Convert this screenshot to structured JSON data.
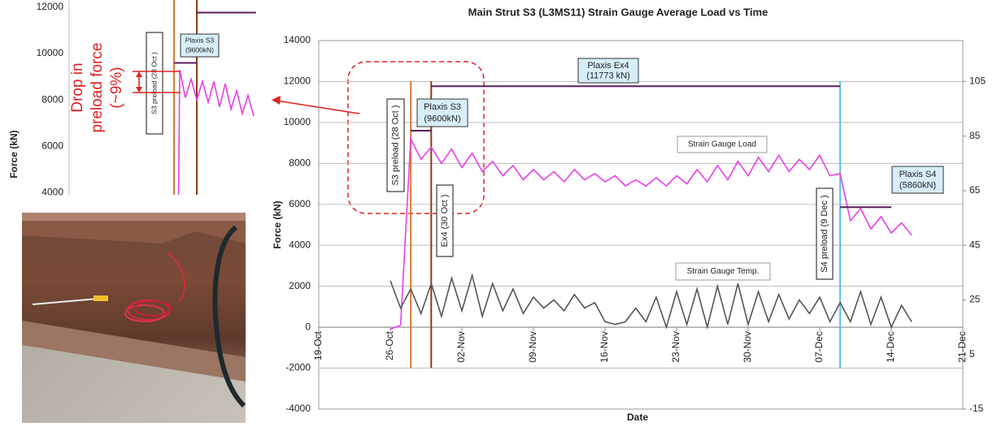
{
  "chart_data": [
    {
      "type": "line",
      "title": "Main Strut S3 (L3MS11) Strain Gauge Average Load vs Time",
      "x_label": "Date",
      "y_label": "Force (kN)",
      "x": [
        7,
        8,
        9,
        10,
        11,
        12,
        13,
        14,
        15,
        16,
        17,
        18,
        19,
        20,
        21,
        22,
        23,
        24,
        25,
        26,
        27,
        28,
        29,
        30,
        31,
        32,
        33,
        34,
        35,
        36,
        37,
        38,
        39,
        40,
        41,
        42,
        43,
        44,
        45,
        46,
        47,
        48,
        49,
        50,
        51,
        52,
        53,
        54,
        55,
        56,
        57,
        58
      ],
      "xlim": [
        0,
        63
      ],
      "xticks": [
        {
          "value": 0,
          "label": "19-Oct"
        },
        {
          "value": 7,
          "label": "26-Oct"
        },
        {
          "value": 14,
          "label": "02-Nov"
        },
        {
          "value": 21,
          "label": "09-Nov"
        },
        {
          "value": 28,
          "label": "16-Nov"
        },
        {
          "value": 35,
          "label": "23-Nov"
        },
        {
          "value": 42,
          "label": "30-Nov"
        },
        {
          "value": 49,
          "label": "07-Dec"
        },
        {
          "value": 56,
          "label": "14-Dec"
        },
        {
          "value": 63,
          "label": "21-Dec"
        }
      ],
      "ylim": [
        -4000,
        14000
      ],
      "yticks": [
        -4000,
        -2000,
        0,
        2000,
        4000,
        6000,
        8000,
        10000,
        12000,
        14000
      ],
      "y2lim": [
        -15,
        120
      ],
      "y2ticks": [
        -15,
        5,
        25,
        45,
        65,
        85,
        105
      ],
      "grid": true,
      "series": [
        {
          "name": "Strain Gauge Load",
          "color": "#e83ee8",
          "values": [
            -100,
            100,
            9200,
            8200,
            8800,
            8000,
            8700,
            7800,
            8500,
            7600,
            8100,
            7400,
            7900,
            7200,
            7700,
            7200,
            7600,
            7100,
            7700,
            7200,
            7500,
            7100,
            7400,
            6900,
            7200,
            6900,
            7300,
            6900,
            7400,
            7000,
            7700,
            7100,
            7900,
            7200,
            8100,
            7400,
            8300,
            7600,
            8400,
            7600,
            8200,
            7700,
            8400,
            7400,
            7500,
            5200,
            5800,
            4800,
            5400,
            4600,
            5100,
            4500
          ]
        },
        {
          "name": "Strain Gauge Temp.",
          "color": "#555555",
          "axis": "y2",
          "values": [
            32,
            22,
            29,
            20,
            31,
            19,
            33,
            21,
            34,
            19,
            31,
            21,
            29,
            20,
            26,
            22,
            25,
            21,
            27,
            22,
            24,
            17,
            16,
            17,
            22,
            17,
            26,
            15,
            28,
            16,
            29,
            15,
            30,
            16,
            31,
            16,
            28,
            17,
            27,
            18,
            25,
            20,
            26,
            17,
            24,
            17,
            28,
            16,
            26,
            15,
            23,
            17
          ]
        },
        {
          "name": "Plaxis S3",
          "color": "#5a1c5a",
          "x": [
            9,
            11
          ],
          "values": [
            9600,
            9600
          ],
          "value_labels": [
            "(9600kN)",
            null
          ]
        },
        {
          "name": "Plaxis Ex4",
          "color": "#5a1c5a",
          "x": [
            11,
            51
          ],
          "values": [
            11773,
            11773
          ],
          "value_labels": [
            "(11773 kN)",
            null
          ]
        },
        {
          "name": "Plaxis S4",
          "color": "#5a1c5a",
          "x": [
            51,
            56
          ],
          "values": [
            5860,
            5860
          ],
          "value_labels": [
            "(5860kN)",
            null
          ]
        }
      ],
      "events": [
        {
          "x": 9,
          "label": "S3 preload (28 Oct )",
          "color": "#e07a2f"
        },
        {
          "x": 11,
          "label": "Ex4 (30 Oct )",
          "color": "#8b3a1a"
        },
        {
          "x": 51,
          "label": "S4 preload (9 Dec )",
          "color": "#5bc0eb"
        }
      ]
    },
    {
      "type": "line",
      "y_label": "Force (kN)",
      "xlim": [
        0,
        16.2
      ],
      "ylim": [
        3900,
        12300
      ],
      "yticks": [
        4000,
        6000,
        8000,
        10000,
        12000
      ],
      "series": [
        {
          "color": "#e83ee8",
          "x": [
            9.4,
            9.5,
            10,
            10.5,
            11,
            11.5,
            12,
            12.5,
            13,
            13.5,
            14,
            14.5,
            15,
            15.5,
            16
          ],
          "values": [
            3900,
            9300,
            8100,
            8900,
            8000,
            8800,
            7900,
            8800,
            7700,
            8700,
            7600,
            8400,
            7400,
            8200,
            7300
          ]
        },
        {
          "name": "Plaxis S3",
          "color": "#5a1c5a",
          "x": [
            9,
            11
          ],
          "values": [
            9600,
            9600
          ],
          "value_labels": [
            "(9600kN)",
            null
          ]
        },
        {
          "color": "#5a1c5a",
          "x": [
            11,
            16.2
          ],
          "values": [
            11773,
            11773
          ]
        }
      ],
      "events": [
        {
          "x": 9,
          "label": "S3 preload (28 Oct )",
          "color": "#e07a2f"
        },
        {
          "x": 11,
          "color": "#8b3a1a"
        }
      ],
      "annotation": [
        "Drop in",
        "preload force",
        "(~9%)"
      ]
    }
  ]
}
